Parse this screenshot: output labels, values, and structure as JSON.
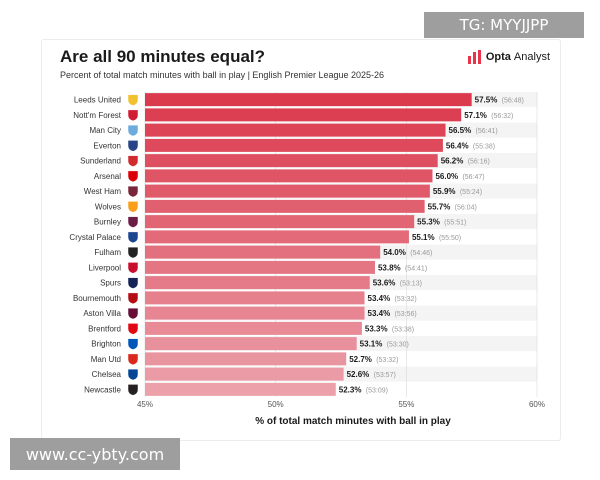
{
  "watermarks": {
    "top": "TG: MYYJJPP",
    "bottom": "www.cc-ybty.com"
  },
  "header": {
    "title": "Are all 90 minutes equal?",
    "subtitle": "Percent of total match minutes with ball in play | English Premier League 2025-26",
    "logo_bold": "Opta",
    "logo_light": "Analyst"
  },
  "colors": {
    "bar_top": "#db3a4d",
    "bar_bottom": "#eba0aa",
    "logo_mark": "#e8334a"
  },
  "chart_data": {
    "type": "bar",
    "orientation": "horizontal",
    "title": "Are all 90 minutes equal?",
    "xlabel": "% of total match minutes with ball in play",
    "xlim": [
      45,
      60
    ],
    "xticks": [
      "45%",
      "50%",
      "55%",
      "60%"
    ],
    "xtick_values": [
      45,
      50,
      55,
      60
    ],
    "categories": [
      "Leeds United",
      "Nott'm Forest",
      "Man City",
      "Everton",
      "Sunderland",
      "Arsenal",
      "West Ham",
      "Wolves",
      "Burnley",
      "Crystal Palace",
      "Fulham",
      "Liverpool",
      "Spurs",
      "Bournemouth",
      "Aston Villa",
      "Brentford",
      "Brighton",
      "Man Utd",
      "Chelsea",
      "Newcastle"
    ],
    "values": [
      57.5,
      57.1,
      56.5,
      56.4,
      56.2,
      56.0,
      55.9,
      55.7,
      55.3,
      55.1,
      54.0,
      53.8,
      53.6,
      53.4,
      53.4,
      53.3,
      53.1,
      52.7,
      52.6,
      52.3
    ],
    "value_labels": [
      "57.5%",
      "57.1%",
      "56.5%",
      "56.4%",
      "56.2%",
      "56.0%",
      "55.9%",
      "55.7%",
      "55.3%",
      "55.1%",
      "54.0%",
      "53.8%",
      "53.6%",
      "53.4%",
      "53.4%",
      "53.3%",
      "53.1%",
      "52.7%",
      "52.6%",
      "52.3%"
    ],
    "time_labels": [
      "(56:48)",
      "(56:32)",
      "(56:41)",
      "(55:38)",
      "(56:16)",
      "(56:47)",
      "(55:24)",
      "(56:04)",
      "(55:51)",
      "(55:50)",
      "(54:46)",
      "(54:41)",
      "(53:13)",
      "(53:32)",
      "(53:56)",
      "(53:38)",
      "(53:30)",
      "(53:32)",
      "(53:57)",
      "(53:09)"
    ],
    "badge_colors": [
      "#f2c12e",
      "#d11d32",
      "#6cabdd",
      "#274488",
      "#d12a2f",
      "#db0007",
      "#7a263a",
      "#f9a01b",
      "#6c1d45",
      "#1b458f",
      "#222222",
      "#c8102e",
      "#132257",
      "#b50e12",
      "#670e36",
      "#e30613",
      "#0057b8",
      "#da291c",
      "#034694",
      "#241f20"
    ]
  }
}
